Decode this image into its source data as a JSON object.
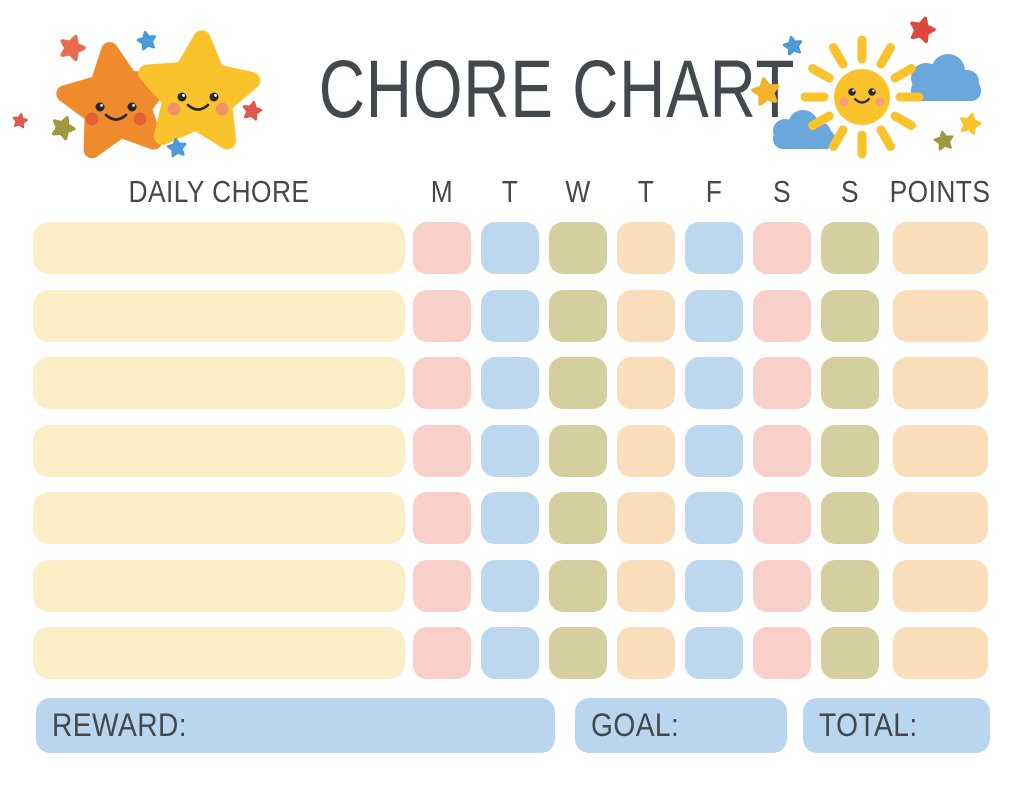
{
  "title": "CHORE CHART",
  "grid": {
    "chore_header": "DAILY CHORE",
    "day_columns": [
      "M",
      "T",
      "W",
      "T",
      "F",
      "S",
      "S"
    ],
    "points_header": "POINTS",
    "row_count": 7,
    "day_cell_colors": [
      "#F8CFC9",
      "#BDD7EE",
      "#D5CFA0",
      "#FADEBC",
      "#BDD7EE",
      "#F8CFC9",
      "#D5CFA0"
    ],
    "chore_cell_color": "#FBEDC5",
    "points_cell_color": "#FADEBC"
  },
  "footer": {
    "reward_label": "REWARD:",
    "goal_label": "GOAL:",
    "total_label": "TOTAL:",
    "box_color": "#B9D6EE"
  },
  "decorations": {
    "left": {
      "name": "twin smiling stars",
      "big_star_colors": [
        "#EF8A2D",
        "#FBC32B"
      ],
      "accent_star_colors": [
        "#E86A50",
        "#4D9AD8",
        "#A0983C",
        "#E2574C"
      ]
    },
    "right": {
      "name": "smiling sun with clouds and stars",
      "sun_color": "#FBC32B",
      "cloud_color": "#6BA6DD",
      "accent_star_colors": [
        "#4D9AD8",
        "#E0473C",
        "#F2B22A",
        "#FBC32B",
        "#A0983C"
      ]
    }
  },
  "text_color": "#43484C"
}
